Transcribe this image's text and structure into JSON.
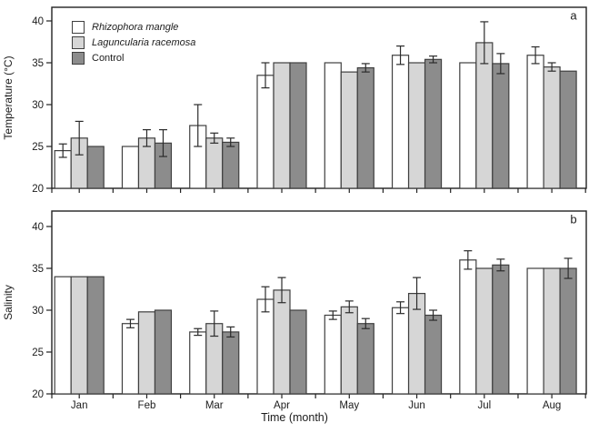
{
  "figure": {
    "xlabel": "Time (month)"
  },
  "legend": {
    "items": [
      {
        "label": "Rhizophora mangle",
        "italic": true,
        "fill": "#ffffff"
      },
      {
        "label": "Laguncularia racemosa",
        "italic": true,
        "fill": "#d6d6d6"
      },
      {
        "label": "Control",
        "italic": false,
        "fill": "#8c8c8c"
      }
    ]
  },
  "style": {
    "axis_color": "#222222",
    "bar_stroke": "#3f3f3f",
    "error_color": "#2b2b2b",
    "text_color": "#1c1c1c",
    "series_colors": [
      "#ffffff",
      "#d6d6d6",
      "#8c8c8c"
    ]
  },
  "chart_data": [
    {
      "type": "bar",
      "panel_label": "a",
      "title": "",
      "ylabel": "Temperature (°C)",
      "xlabel": "",
      "categories": [
        "Jan",
        "Feb",
        "Mar",
        "Apr",
        "May",
        "Jun",
        "Jul",
        "Aug"
      ],
      "ylim": [
        20,
        42
      ],
      "yticks": [
        20,
        25,
        30,
        35,
        40
      ],
      "grid": false,
      "legend_position": "top-left-inside",
      "series": [
        {
          "name": "Rhizophora mangle",
          "values": [
            24.5,
            25.0,
            27.5,
            33.5,
            35.0,
            35.9,
            35.0,
            35.9
          ],
          "errors": [
            0.8,
            null,
            2.5,
            1.5,
            null,
            1.1,
            null,
            1.0
          ]
        },
        {
          "name": "Laguncularia racemosa",
          "values": [
            26.0,
            26.0,
            26.0,
            35.0,
            33.9,
            35.0,
            37.4,
            34.5
          ],
          "errors": [
            2.0,
            1.0,
            0.6,
            null,
            null,
            null,
            2.5,
            0.5
          ]
        },
        {
          "name": "Control",
          "values": [
            25.0,
            25.4,
            25.5,
            35.0,
            34.4,
            35.4,
            34.9,
            34.0
          ],
          "errors": [
            null,
            1.6,
            0.5,
            null,
            0.5,
            0.4,
            1.2,
            null
          ]
        }
      ]
    },
    {
      "type": "bar",
      "panel_label": "b",
      "title": "",
      "ylabel": "Salinity",
      "xlabel": "Time (month)",
      "categories": [
        "Jan",
        "Feb",
        "Mar",
        "Apr",
        "May",
        "Jun",
        "Jul",
        "Aug"
      ],
      "ylim": [
        20,
        42
      ],
      "yticks": [
        20,
        25,
        30,
        35,
        40
      ],
      "grid": false,
      "series": [
        {
          "name": "Rhizophora mangle",
          "values": [
            34.0,
            28.4,
            27.4,
            31.3,
            29.4,
            30.3,
            36.0,
            35.0
          ],
          "errors": [
            null,
            0.5,
            0.4,
            1.5,
            0.5,
            0.7,
            1.1,
            null
          ]
        },
        {
          "name": "Laguncularia racemosa",
          "values": [
            34.0,
            29.8,
            28.4,
            32.4,
            30.4,
            32.0,
            35.0,
            35.0
          ],
          "errors": [
            null,
            null,
            1.5,
            1.5,
            0.7,
            1.9,
            null,
            null
          ]
        },
        {
          "name": "Control",
          "values": [
            34.0,
            30.0,
            27.4,
            30.0,
            28.4,
            29.4,
            35.4,
            35.0
          ],
          "errors": [
            null,
            null,
            0.6,
            null,
            0.6,
            0.6,
            0.7,
            1.2
          ]
        }
      ]
    }
  ]
}
